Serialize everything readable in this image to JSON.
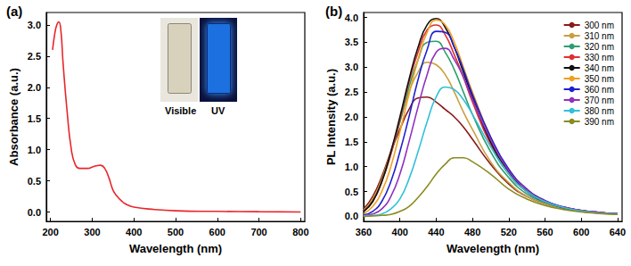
{
  "chart_data": [
    {
      "type": "line",
      "title": "(a)",
      "x_label": "Wavelength (nm)",
      "y_label": "Absorbance (a.u.)",
      "annotations": [
        "Visible",
        "UV"
      ],
      "x": [
        205,
        210,
        215,
        220,
        225,
        230,
        240,
        250,
        260,
        270,
        280,
        290,
        300,
        310,
        320,
        330,
        340,
        350,
        360,
        370,
        380,
        400,
        450,
        500,
        600,
        700,
        800
      ],
      "values": [
        2.6,
        2.85,
        3.0,
        3.05,
        2.9,
        2.4,
        1.6,
        1.0,
        0.75,
        0.7,
        0.7,
        0.7,
        0.72,
        0.74,
        0.75,
        0.7,
        0.55,
        0.35,
        0.25,
        0.18,
        0.13,
        0.08,
        0.04,
        0.02,
        0.01,
        0.005,
        0.0
      ],
      "color": "#e8262a",
      "marker": "none",
      "xlim": [
        190,
        810
      ],
      "xticks": [
        200,
        300,
        400,
        500,
        600,
        700,
        800
      ],
      "ylim": [
        -0.15,
        3.2
      ],
      "yticks": [
        {
          "value": 0,
          "label": "0.0"
        },
        0.5,
        {
          "value": 1,
          "label": "1.0"
        },
        1.5,
        {
          "value": 2,
          "label": "2.0"
        },
        2.5,
        {
          "value": 3,
          "label": "3.0"
        }
      ],
      "grid": false
    },
    {
      "type": "line",
      "title": "(b)",
      "x_label": "Wavelength (nm)",
      "y_label": "PL Intensity (a.u.)",
      "x": [
        360,
        370,
        380,
        390,
        400,
        410,
        420,
        430,
        440,
        450,
        460,
        470,
        480,
        500,
        520,
        540,
        560,
        580,
        600,
        620,
        640
      ],
      "series": [
        {
          "name": "300 nm",
          "color": "#8b1a1a",
          "values": [
            0.15,
            0.4,
            0.8,
            1.3,
            1.75,
            2.15,
            2.38,
            2.4,
            2.3,
            2.15,
            2.0,
            1.8,
            1.55,
            1.05,
            0.65,
            0.4,
            0.25,
            0.16,
            0.1,
            0.07,
            0.05
          ]
        },
        {
          "name": "310 nm",
          "color": "#c8a040",
          "values": [
            0.12,
            0.35,
            0.75,
            1.3,
            1.9,
            2.5,
            2.9,
            3.1,
            3.05,
            2.85,
            2.5,
            2.1,
            1.75,
            1.1,
            0.68,
            0.4,
            0.25,
            0.16,
            0.1,
            0.07,
            0.05
          ]
        },
        {
          "name": "320 nm",
          "color": "#2e9e6e",
          "values": [
            0.1,
            0.3,
            0.7,
            1.25,
            1.9,
            2.6,
            3.15,
            3.5,
            3.52,
            3.3,
            2.95,
            2.5,
            2.05,
            1.3,
            0.78,
            0.45,
            0.28,
            0.17,
            0.11,
            0.07,
            0.05
          ]
        },
        {
          "name": "330 nm",
          "color": "#e03030",
          "values": [
            0.1,
            0.3,
            0.7,
            1.25,
            1.95,
            2.7,
            3.3,
            3.75,
            3.85,
            3.65,
            3.25,
            2.8,
            2.3,
            1.45,
            0.85,
            0.5,
            0.3,
            0.18,
            0.12,
            0.08,
            0.05
          ]
        },
        {
          "name": "340 nm",
          "color": "#111111",
          "values": [
            0.1,
            0.3,
            0.7,
            1.3,
            2.0,
            2.75,
            3.4,
            3.85,
            3.98,
            3.8,
            3.4,
            2.9,
            2.4,
            1.5,
            0.9,
            0.5,
            0.3,
            0.18,
            0.12,
            0.08,
            0.05
          ]
        },
        {
          "name": "350 nm",
          "color": "#f0a020",
          "values": [
            0.05,
            0.2,
            0.5,
            1.0,
            1.7,
            2.45,
            3.15,
            3.7,
            3.95,
            3.85,
            3.5,
            3.0,
            2.5,
            1.6,
            0.95,
            0.55,
            0.32,
            0.19,
            0.12,
            0.08,
            0.05
          ]
        },
        {
          "name": "360 nm",
          "color": "#2020d0",
          "values": [
            0.03,
            0.1,
            0.3,
            0.7,
            1.3,
            2.0,
            2.75,
            3.35,
            3.72,
            3.7,
            3.4,
            2.95,
            2.45,
            1.6,
            0.95,
            0.55,
            0.32,
            0.19,
            0.12,
            0.08,
            0.05
          ]
        },
        {
          "name": "370 nm",
          "color": "#9030c0",
          "values": [
            0.02,
            0.05,
            0.15,
            0.4,
            0.85,
            1.5,
            2.2,
            2.85,
            3.3,
            3.38,
            3.15,
            2.8,
            2.35,
            1.55,
            0.92,
            0.54,
            0.31,
            0.19,
            0.12,
            0.08,
            0.05
          ]
        },
        {
          "name": "380 nm",
          "color": "#30c0d8",
          "values": [
            0.01,
            0.02,
            0.05,
            0.15,
            0.35,
            0.75,
            1.3,
            1.9,
            2.4,
            2.6,
            2.55,
            2.35,
            2.05,
            1.4,
            0.85,
            0.5,
            0.3,
            0.18,
            0.11,
            0.07,
            0.05
          ]
        },
        {
          "name": "390 nm",
          "color": "#8b8b20",
          "values": [
            0.0,
            0.01,
            0.02,
            0.04,
            0.1,
            0.2,
            0.38,
            0.6,
            0.85,
            1.05,
            1.18,
            1.18,
            1.1,
            0.85,
            0.55,
            0.35,
            0.22,
            0.14,
            0.09,
            0.06,
            0.04
          ]
        }
      ],
      "marker": "none",
      "xlim": [
        360,
        645
      ],
      "xticks": [
        360,
        400,
        440,
        480,
        520,
        560,
        600,
        640
      ],
      "ylim": [
        -0.1,
        4.1
      ],
      "yticks": [
        {
          "value": 0,
          "label": "0.0"
        },
        0.5,
        {
          "value": 1,
          "label": "1.0"
        },
        1.5,
        {
          "value": 2,
          "label": "2.0"
        },
        2.5,
        {
          "value": 3,
          "label": "3.0"
        },
        3.5,
        {
          "value": 4,
          "label": "4.0"
        }
      ],
      "legend": "upper right",
      "grid": false
    }
  ]
}
